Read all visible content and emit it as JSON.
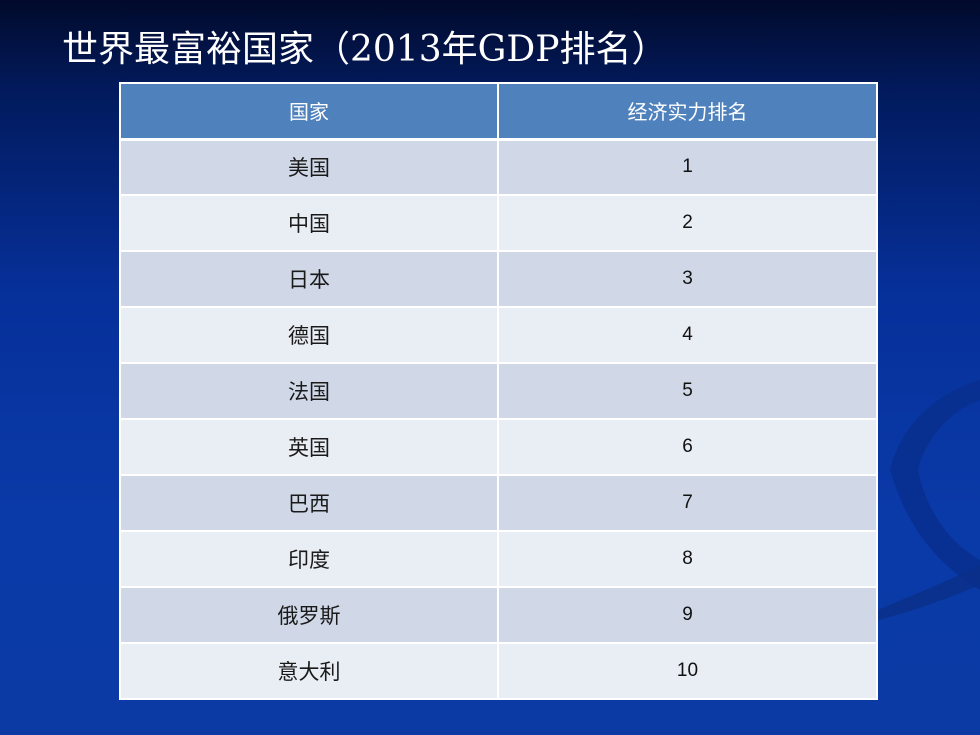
{
  "slide": {
    "title": "世界最富裕国家（2013年GDP排名）"
  },
  "table": {
    "headers": [
      "国家",
      "经济实力排名"
    ],
    "rows": [
      {
        "country": "美国",
        "rank": "1"
      },
      {
        "country": "中国",
        "rank": "2"
      },
      {
        "country": "日本",
        "rank": "3"
      },
      {
        "country": "德国",
        "rank": "4"
      },
      {
        "country": "法国",
        "rank": "5"
      },
      {
        "country": "英国",
        "rank": "6"
      },
      {
        "country": "巴西",
        "rank": "7"
      },
      {
        "country": "印度",
        "rank": "8"
      },
      {
        "country": "俄罗斯",
        "rank": "9"
      },
      {
        "country": "意大利",
        "rank": "10"
      }
    ]
  },
  "colors": {
    "header_bg": "#4f81bd",
    "row_dark": "#d0d8e8",
    "row_light": "#e9edf4",
    "background": "#0a3aa8"
  }
}
